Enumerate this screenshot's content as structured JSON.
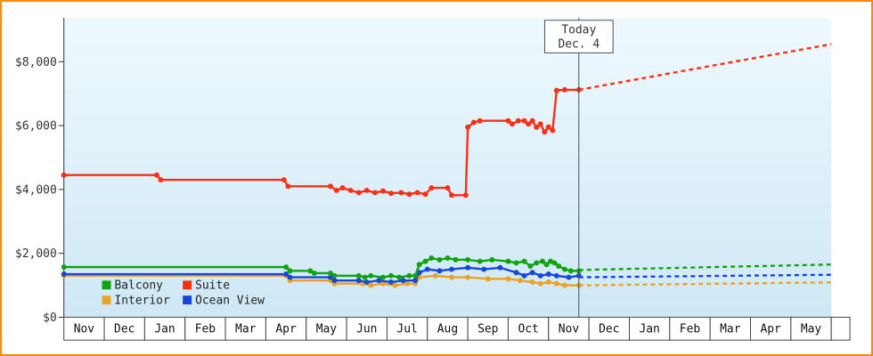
{
  "frame": {
    "border_color": "#ff8a00",
    "background": "#ffffff"
  },
  "chart_data": {
    "type": "line",
    "title": "",
    "y_axis": {
      "tick_values": [
        0,
        2000,
        4000,
        6000,
        8000
      ],
      "tick_labels": [
        "$0",
        "$2,000",
        "$4,000",
        "$6,000",
        "$8,000"
      ],
      "visible_max": 9380
    },
    "x_axis": {
      "unit": "month",
      "month_labels": [
        "Nov",
        "Dec",
        "Jan",
        "Feb",
        "Mar",
        "Apr",
        "May",
        "Jun",
        "Jul",
        "Aug",
        "Sep",
        "Oct",
        "Nov",
        "Dec",
        "Jan",
        "Feb",
        "Mar",
        "Apr",
        "May"
      ]
    },
    "today_marker": {
      "line1": "Today",
      "line2": "Dec. 4",
      "x_months": 12.75
    },
    "plot_colors": {
      "bg_top": "#eef9fe",
      "bg_bottom": "#cfe8f6",
      "axis": "#333333",
      "cell_border": "#444444",
      "today_line": "#44545e"
    },
    "legend": {
      "position": "bottom-left",
      "rows": [
        [
          "Balcony",
          "Suite"
        ],
        [
          "Interior",
          "Ocean View"
        ]
      ]
    },
    "series": [
      {
        "name": "Balcony",
        "color": "#0fa30f",
        "points": [
          [
            0,
            1570
          ],
          [
            5.5,
            1570
          ],
          [
            5.6,
            1450
          ],
          [
            6.1,
            1450
          ],
          [
            6.2,
            1380
          ],
          [
            6.6,
            1380
          ],
          [
            6.7,
            1300
          ],
          [
            7.3,
            1300
          ],
          [
            7.45,
            1250
          ],
          [
            7.6,
            1300
          ],
          [
            7.9,
            1250
          ],
          [
            8.1,
            1300
          ],
          [
            8.3,
            1250
          ],
          [
            8.55,
            1300
          ],
          [
            8.7,
            1300
          ],
          [
            8.8,
            1650
          ],
          [
            8.95,
            1750
          ],
          [
            9.1,
            1850
          ],
          [
            9.3,
            1800
          ],
          [
            9.5,
            1850
          ],
          [
            9.7,
            1800
          ],
          [
            10.0,
            1800
          ],
          [
            10.3,
            1750
          ],
          [
            10.6,
            1800
          ],
          [
            11.0,
            1750
          ],
          [
            11.2,
            1700
          ],
          [
            11.4,
            1750
          ],
          [
            11.55,
            1600
          ],
          [
            11.7,
            1700
          ],
          [
            11.85,
            1750
          ],
          [
            11.95,
            1650
          ],
          [
            12.05,
            1750
          ],
          [
            12.15,
            1700
          ],
          [
            12.25,
            1600
          ],
          [
            12.4,
            1500
          ],
          [
            12.55,
            1450
          ],
          [
            12.75,
            1450
          ]
        ],
        "projection": [
          [
            12.75,
            1480
          ],
          [
            19,
            1650
          ]
        ]
      },
      {
        "name": "Suite",
        "color": "#fa2f14",
        "points": [
          [
            0,
            4450
          ],
          [
            2.3,
            4450
          ],
          [
            2.4,
            4300
          ],
          [
            5.45,
            4300
          ],
          [
            5.55,
            4100
          ],
          [
            6.6,
            4100
          ],
          [
            6.75,
            3970
          ],
          [
            6.9,
            4050
          ],
          [
            7.1,
            3970
          ],
          [
            7.3,
            3900
          ],
          [
            7.5,
            3970
          ],
          [
            7.7,
            3900
          ],
          [
            7.9,
            3950
          ],
          [
            8.1,
            3880
          ],
          [
            8.35,
            3900
          ],
          [
            8.55,
            3850
          ],
          [
            8.75,
            3900
          ],
          [
            8.95,
            3850
          ],
          [
            9.1,
            4050
          ],
          [
            9.5,
            4050
          ],
          [
            9.6,
            3820
          ],
          [
            9.95,
            3820
          ],
          [
            10.0,
            5950
          ],
          [
            10.15,
            6100
          ],
          [
            10.3,
            6150
          ],
          [
            11.0,
            6150
          ],
          [
            11.1,
            6050
          ],
          [
            11.25,
            6150
          ],
          [
            11.4,
            6150
          ],
          [
            11.5,
            6050
          ],
          [
            11.6,
            6150
          ],
          [
            11.7,
            5950
          ],
          [
            11.8,
            6050
          ],
          [
            11.9,
            5800
          ],
          [
            12.0,
            5950
          ],
          [
            12.1,
            5850
          ],
          [
            12.2,
            7100
          ],
          [
            12.4,
            7120
          ],
          [
            12.75,
            7120
          ]
        ],
        "projection": [
          [
            12.75,
            7120
          ],
          [
            19,
            8550
          ]
        ]
      },
      {
        "name": "Interior",
        "color": "#eca224",
        "points": [
          [
            0,
            1300
          ],
          [
            5.5,
            1300
          ],
          [
            5.6,
            1150
          ],
          [
            6.6,
            1150
          ],
          [
            6.7,
            1050
          ],
          [
            7.4,
            1050
          ],
          [
            7.6,
            1000
          ],
          [
            7.9,
            1050
          ],
          [
            8.2,
            1000
          ],
          [
            8.5,
            1050
          ],
          [
            8.7,
            1050
          ],
          [
            8.8,
            1250
          ],
          [
            9.2,
            1300
          ],
          [
            9.6,
            1250
          ],
          [
            10.0,
            1250
          ],
          [
            10.5,
            1200
          ],
          [
            11.0,
            1200
          ],
          [
            11.3,
            1150
          ],
          [
            11.6,
            1100
          ],
          [
            11.8,
            1050
          ],
          [
            12.0,
            1100
          ],
          [
            12.2,
            1050
          ],
          [
            12.4,
            1000
          ],
          [
            12.75,
            1000
          ]
        ],
        "projection": [
          [
            12.75,
            1000
          ],
          [
            19,
            1090
          ]
        ]
      },
      {
        "name": "Ocean View",
        "color": "#1846d8",
        "points": [
          [
            0,
            1350
          ],
          [
            5.5,
            1350
          ],
          [
            5.6,
            1250
          ],
          [
            6.6,
            1250
          ],
          [
            6.7,
            1150
          ],
          [
            7.3,
            1150
          ],
          [
            7.5,
            1100
          ],
          [
            7.8,
            1150
          ],
          [
            8.1,
            1100
          ],
          [
            8.4,
            1150
          ],
          [
            8.7,
            1150
          ],
          [
            8.8,
            1400
          ],
          [
            9.0,
            1500
          ],
          [
            9.3,
            1450
          ],
          [
            9.6,
            1500
          ],
          [
            10.0,
            1550
          ],
          [
            10.4,
            1500
          ],
          [
            10.8,
            1550
          ],
          [
            11.2,
            1400
          ],
          [
            11.4,
            1300
          ],
          [
            11.6,
            1400
          ],
          [
            11.8,
            1300
          ],
          [
            12.0,
            1350
          ],
          [
            12.2,
            1300
          ],
          [
            12.5,
            1250
          ],
          [
            12.75,
            1300
          ]
        ],
        "projection": [
          [
            12.75,
            1250
          ],
          [
            19,
            1330
          ]
        ]
      }
    ]
  }
}
